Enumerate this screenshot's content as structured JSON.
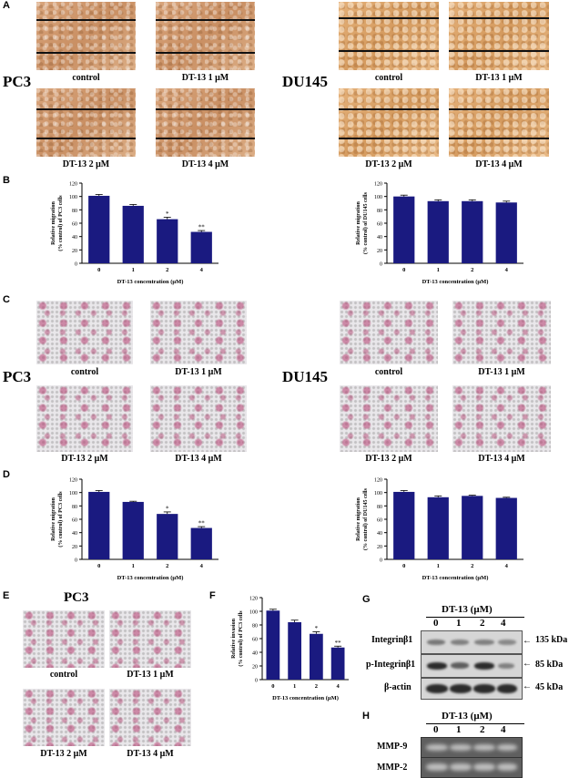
{
  "panels": {
    "A": "A",
    "B": "B",
    "C": "C",
    "D": "D",
    "E": "E",
    "F": "F",
    "G": "G",
    "H": "H"
  },
  "cell_lines": {
    "pc3": "PC3",
    "du145": "DU145"
  },
  "conditions": [
    "control",
    "DT-13 1 μM",
    "DT-13 2 μM",
    "DT-13 4 μM"
  ],
  "chart_data": [
    {
      "id": "B-left",
      "type": "bar",
      "categories": [
        "0",
        "1",
        "2",
        "4"
      ],
      "values": [
        101,
        86,
        66,
        47
      ],
      "errors": [
        2,
        2,
        3,
        2
      ],
      "significance": [
        "",
        "",
        "*",
        "**"
      ],
      "xlabel": "DT-13 concentration (μM)",
      "ylabel": "Relative migration\n(% control) of PC3 cells",
      "ylim": [
        0,
        120
      ],
      "yticks": [
        0,
        20,
        40,
        60,
        80,
        100,
        120
      ],
      "color": "#1a1a80"
    },
    {
      "id": "B-right",
      "type": "bar",
      "categories": [
        "0",
        "1",
        "2",
        "4"
      ],
      "values": [
        100,
        93,
        93,
        91
      ],
      "errors": [
        2,
        2,
        2,
        2
      ],
      "significance": [
        "",
        "",
        "",
        ""
      ],
      "xlabel": "DT-13 concentration (μM)",
      "ylabel": "Relative migration\n(% control) of DU145 cells",
      "ylim": [
        0,
        120
      ],
      "yticks": [
        0,
        20,
        40,
        60,
        80,
        100,
        120
      ],
      "color": "#1a1a80"
    },
    {
      "id": "D-left",
      "type": "bar",
      "categories": [
        "0",
        "1",
        "2",
        "4"
      ],
      "values": [
        101,
        86,
        68,
        47
      ],
      "errors": [
        2,
        1,
        3,
        2
      ],
      "significance": [
        "",
        "",
        "*",
        "**"
      ],
      "xlabel": "DT-13 concentration (μM)",
      "ylabel": "Relative migration\n(% control) of PC3 cells",
      "ylim": [
        0,
        120
      ],
      "yticks": [
        0,
        20,
        40,
        60,
        80,
        100,
        120
      ],
      "color": "#1a1a80"
    },
    {
      "id": "D-right",
      "type": "bar",
      "categories": [
        "0",
        "1",
        "2",
        "4"
      ],
      "values": [
        101,
        93,
        95,
        92
      ],
      "errors": [
        2,
        2,
        1,
        1
      ],
      "significance": [
        "",
        "",
        "",
        ""
      ],
      "xlabel": "DT-13 concentration (μM)",
      "ylabel": "Relative migration\n(% control) of DU145 cells",
      "ylim": [
        0,
        120
      ],
      "yticks": [
        0,
        20,
        40,
        60,
        80,
        100,
        120
      ],
      "color": "#1a1a80"
    },
    {
      "id": "F",
      "type": "bar",
      "categories": [
        "0",
        "1",
        "2",
        "4"
      ],
      "values": [
        101,
        84,
        67,
        47
      ],
      "errors": [
        2,
        3,
        3,
        2
      ],
      "significance": [
        "",
        "",
        "*",
        "**"
      ],
      "xlabel": "DT-13 concentration (μM)",
      "ylabel": "Relative invasion\n(% control) of PC3 cells",
      "ylim": [
        0,
        120
      ],
      "yticks": [
        0,
        20,
        40,
        60,
        80,
        100,
        120
      ],
      "color": "#1a1a80"
    }
  ],
  "blot_g": {
    "header": "DT-13 (μM)",
    "lanes": [
      "0",
      "1",
      "2",
      "4"
    ],
    "rows": [
      {
        "label": "Integrinβ1",
        "kda": "135 kDa"
      },
      {
        "label": "p-Integrinβ1",
        "kda": "85 kDa"
      },
      {
        "label": "β-actin",
        "kda": "45 kDa"
      }
    ]
  },
  "blot_h": {
    "header": "DT-13 (μM)",
    "lanes": [
      "0",
      "1",
      "2",
      "4"
    ],
    "rows": [
      {
        "label": "MMP-9"
      },
      {
        "label": "MMP-2"
      }
    ]
  },
  "colors": {
    "bar": "#1a1a80",
    "stain": "#b43c6e"
  }
}
